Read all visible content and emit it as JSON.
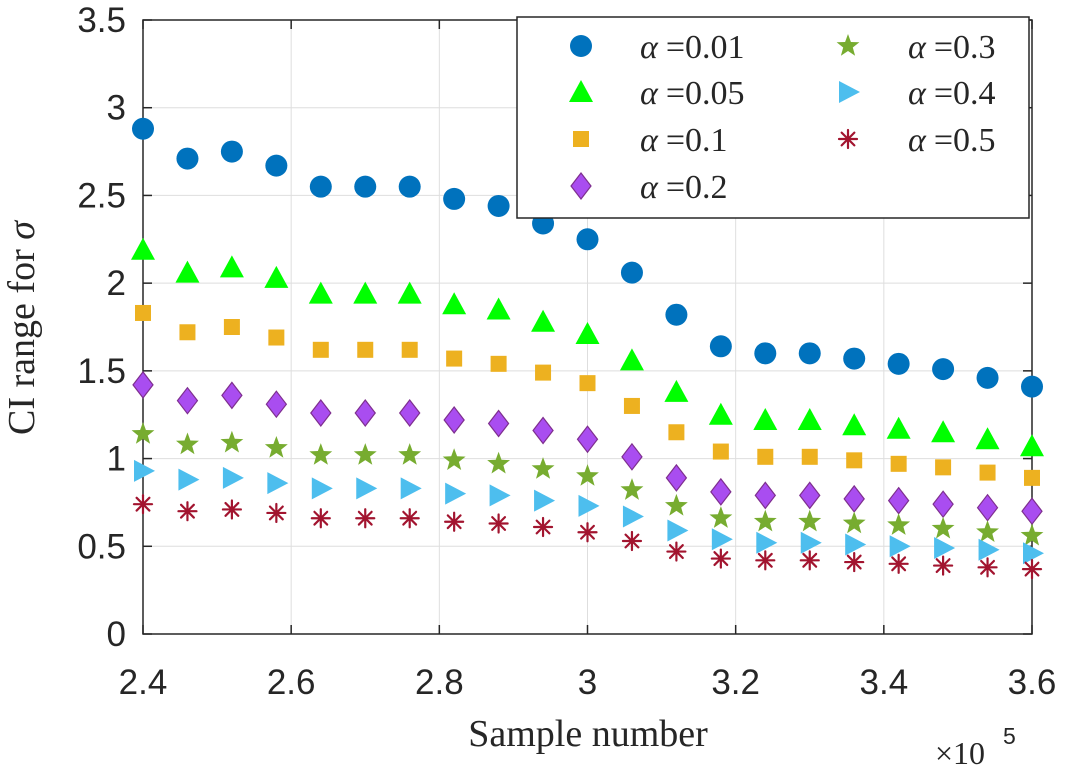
{
  "chart_data": {
    "type": "scatter",
    "title": "",
    "xlabel": "Sample number",
    "ylabel_text": "CI range for",
    "ylabel_symbol": "σ",
    "x_exponent_label": "×10",
    "x_exponent_power": "5",
    "xlim": [
      2.4,
      3.6
    ],
    "ylim": [
      0,
      3.5
    ],
    "x_ticks": [
      2.4,
      2.6,
      2.8,
      3.0,
      3.2,
      3.4,
      3.6
    ],
    "x_tick_labels": [
      "2.4",
      "2.6",
      "2.8",
      "3",
      "3.2",
      "3.4",
      "3.6"
    ],
    "y_ticks": [
      0,
      0.5,
      1,
      1.5,
      2,
      2.5,
      3,
      3.5
    ],
    "y_tick_labels": [
      "0",
      "0.5",
      "1",
      "1.5",
      "2",
      "2.5",
      "3",
      "3.5"
    ],
    "grid": true,
    "legend_position": "top-right",
    "x": [
      2.4,
      2.46,
      2.52,
      2.58,
      2.64,
      2.7,
      2.76,
      2.82,
      2.88,
      2.94,
      3.0,
      3.06,
      3.12,
      3.18,
      3.24,
      3.3,
      3.36,
      3.42,
      3.48,
      3.54,
      3.6
    ],
    "series": [
      {
        "symbol": "α",
        "eq": "=",
        "value_label": "0.01",
        "marker": "circle",
        "color": "#0072BD",
        "values": [
          2.88,
          2.71,
          2.75,
          2.67,
          2.55,
          2.55,
          2.55,
          2.48,
          2.44,
          2.34,
          2.25,
          2.06,
          1.82,
          1.64,
          1.6,
          1.6,
          1.57,
          1.54,
          1.51,
          1.46,
          1.41
        ]
      },
      {
        "symbol": "α",
        "eq": "=",
        "value_label": "0.05",
        "marker": "triangle",
        "color": "#00FF00",
        "values": [
          2.19,
          2.06,
          2.09,
          2.03,
          1.94,
          1.94,
          1.94,
          1.88,
          1.85,
          1.78,
          1.71,
          1.56,
          1.38,
          1.25,
          1.22,
          1.22,
          1.19,
          1.17,
          1.15,
          1.11,
          1.07
        ]
      },
      {
        "symbol": "α",
        "eq": "=",
        "value_label": "0.1",
        "marker": "square",
        "color": "#EDB120",
        "values": [
          1.83,
          1.72,
          1.75,
          1.69,
          1.62,
          1.62,
          1.62,
          1.57,
          1.54,
          1.49,
          1.43,
          1.3,
          1.15,
          1.04,
          1.01,
          1.01,
          0.99,
          0.97,
          0.95,
          0.92,
          0.89
        ]
      },
      {
        "symbol": "α",
        "eq": "=",
        "value_label": "0.2",
        "marker": "diamond",
        "color": "#A94DF0",
        "values": [
          1.42,
          1.33,
          1.36,
          1.31,
          1.26,
          1.26,
          1.26,
          1.22,
          1.2,
          1.16,
          1.11,
          1.01,
          0.89,
          0.81,
          0.79,
          0.79,
          0.77,
          0.76,
          0.74,
          0.72,
          0.7
        ]
      },
      {
        "symbol": "α",
        "eq": "=",
        "value_label": "0.3",
        "marker": "star",
        "color": "#77AC30",
        "values": [
          1.14,
          1.08,
          1.09,
          1.06,
          1.02,
          1.02,
          1.02,
          0.99,
          0.97,
          0.94,
          0.9,
          0.82,
          0.73,
          0.66,
          0.64,
          0.64,
          0.63,
          0.62,
          0.6,
          0.58,
          0.56
        ]
      },
      {
        "symbol": "α",
        "eq": "=",
        "value_label": "0.4",
        "marker": "right-triangle",
        "color": "#4DBEEE",
        "values": [
          0.93,
          0.88,
          0.89,
          0.86,
          0.83,
          0.83,
          0.83,
          0.8,
          0.79,
          0.76,
          0.73,
          0.67,
          0.59,
          0.54,
          0.52,
          0.52,
          0.51,
          0.5,
          0.49,
          0.48,
          0.46
        ]
      },
      {
        "symbol": "α",
        "eq": "=",
        "value_label": "0.5",
        "marker": "asterisk",
        "color": "#A2142F",
        "values": [
          0.74,
          0.7,
          0.71,
          0.69,
          0.66,
          0.66,
          0.66,
          0.64,
          0.63,
          0.61,
          0.58,
          0.53,
          0.47,
          0.43,
          0.42,
          0.42,
          0.41,
          0.4,
          0.39,
          0.38,
          0.37
        ]
      }
    ]
  }
}
